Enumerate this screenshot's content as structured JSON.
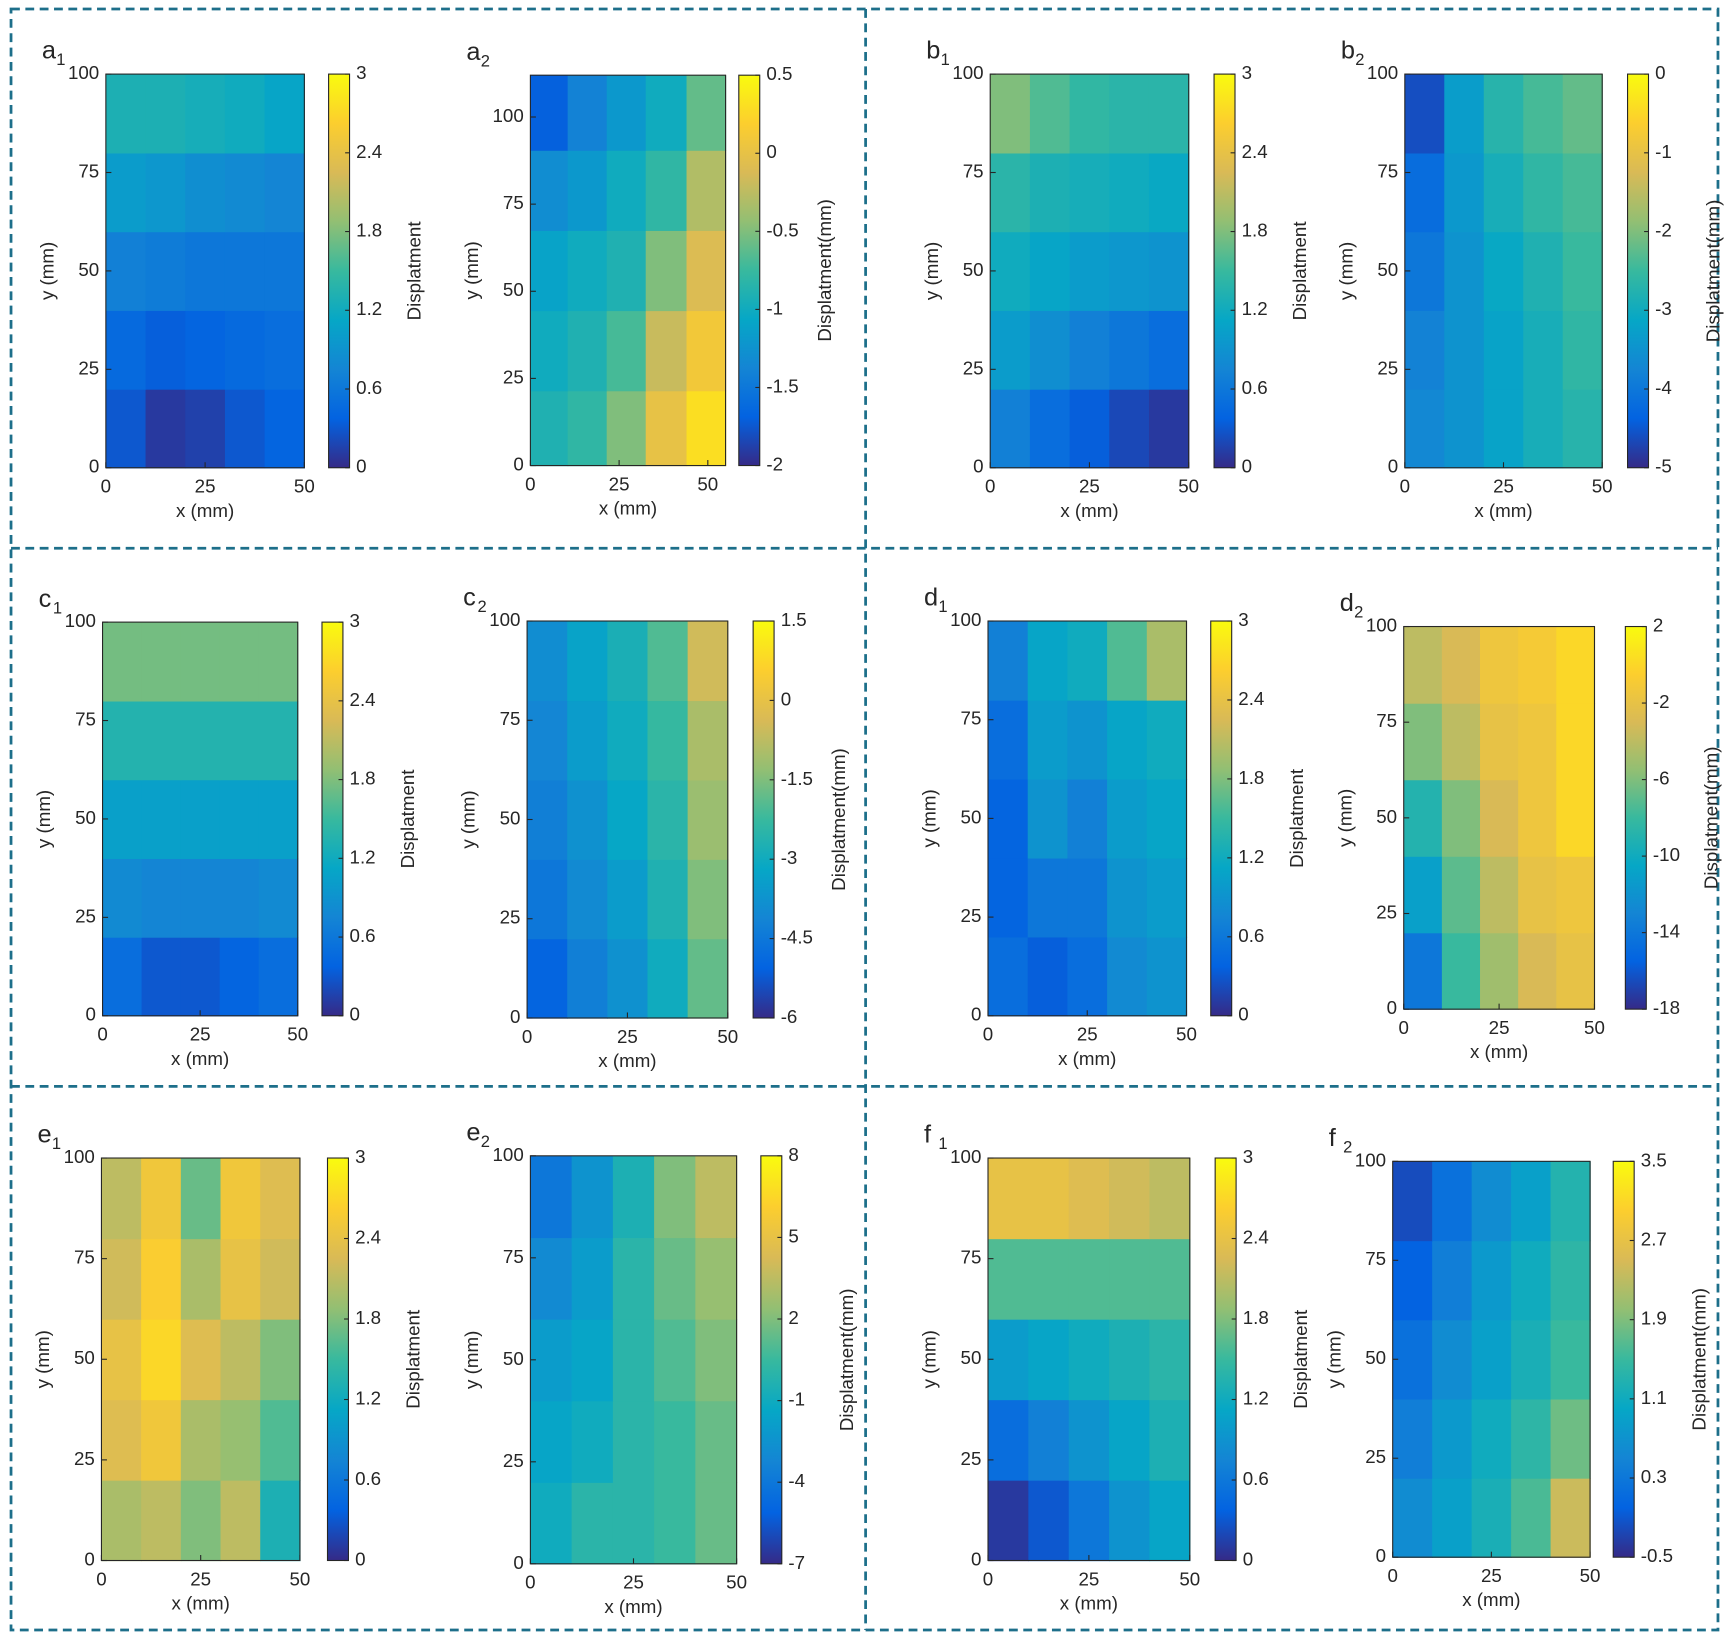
{
  "chart_data": [
    {
      "type": "contour",
      "label": "a",
      "sub": "1",
      "xlabel": "x (mm)",
      "ylabel": "y (mm)",
      "cbar_label": "Displatment",
      "x": [
        5,
        15,
        25,
        35,
        45
      ],
      "y": [
        10,
        30,
        50,
        70,
        90
      ],
      "z": [
        [
          0.3,
          0.1,
          0.15,
          0.3,
          0.4
        ],
        [
          0.45,
          0.35,
          0.4,
          0.45,
          0.5
        ],
        [
          0.7,
          0.65,
          0.6,
          0.6,
          0.6
        ],
        [
          1.0,
          0.95,
          0.85,
          0.8,
          0.75
        ],
        [
          1.3,
          1.3,
          1.25,
          1.2,
          1.1
        ]
      ],
      "xlim": [
        0,
        50
      ],
      "ylim": [
        0,
        100
      ],
      "xticks": [
        0,
        25,
        50
      ],
      "yticks": [
        0,
        25,
        50,
        75,
        100
      ],
      "clim": [
        0,
        3
      ],
      "cticks": [
        0,
        0.6,
        1.2,
        1.8,
        2.4,
        3
      ]
    },
    {
      "type": "contour",
      "label": "a",
      "sub": "2",
      "xlabel": "x (mm)",
      "ylabel": "y (mm)",
      "cbar_label": "Displatment(mm)",
      "x": [
        5,
        16,
        27,
        38,
        50
      ],
      "y": [
        10,
        33,
        56,
        79,
        102
      ],
      "z": [
        [
          -0.9,
          -0.8,
          -0.5,
          0.0,
          0.3
        ],
        [
          -1.0,
          -0.9,
          -0.7,
          -0.2,
          0.1
        ],
        [
          -1.1,
          -1.0,
          -0.9,
          -0.5,
          -0.1
        ],
        [
          -1.3,
          -1.2,
          -1.0,
          -0.8,
          -0.3
        ],
        [
          -1.7,
          -1.4,
          -1.2,
          -1.0,
          -0.6
        ]
      ],
      "xlim": [
        0,
        55
      ],
      "ylim": [
        0,
        112
      ],
      "xticks": [
        0,
        25,
        50
      ],
      "yticks": [
        0,
        25,
        50,
        75,
        100
      ],
      "clim": [
        -2,
        0.5
      ],
      "cticks": [
        -2,
        -1.5,
        -1,
        -0.5,
        0,
        0.5
      ]
    },
    {
      "type": "contour",
      "label": "b",
      "sub": "1",
      "xlabel": "x (mm)",
      "ylabel": "y (mm)",
      "cbar_label": "Displatment",
      "x": [
        5,
        15,
        25,
        35,
        45
      ],
      "y": [
        10,
        30,
        50,
        70,
        90
      ],
      "z": [
        [
          0.7,
          0.5,
          0.35,
          0.2,
          0.1
        ],
        [
          1.0,
          0.85,
          0.7,
          0.6,
          0.5
        ],
        [
          1.2,
          1.1,
          1.0,
          0.95,
          0.9
        ],
        [
          1.4,
          1.3,
          1.25,
          1.2,
          1.15
        ],
        [
          1.8,
          1.6,
          1.45,
          1.4,
          1.4
        ]
      ],
      "xlim": [
        0,
        50
      ],
      "ylim": [
        0,
        100
      ],
      "xticks": [
        0,
        25,
        50
      ],
      "yticks": [
        0,
        25,
        50,
        75,
        100
      ],
      "clim": [
        0,
        3
      ],
      "cticks": [
        0,
        0.6,
        1.2,
        1.8,
        2.4,
        3
      ]
    },
    {
      "type": "contour",
      "label": "b",
      "sub": "2",
      "xlabel": "x (mm)",
      "ylabel": "y (mm)",
      "cbar_label": "Displatment(mm)",
      "x": [
        5,
        15,
        25,
        35,
        45
      ],
      "y": [
        10,
        30,
        50,
        70,
        90
      ],
      "z": [
        [
          -3.7,
          -3.5,
          -3.2,
          -2.9,
          -2.7
        ],
        [
          -3.8,
          -3.5,
          -3.2,
          -2.9,
          -2.6
        ],
        [
          -4.0,
          -3.5,
          -3.1,
          -2.8,
          -2.5
        ],
        [
          -4.2,
          -3.4,
          -2.9,
          -2.6,
          -2.4
        ],
        [
          -4.6,
          -3.3,
          -2.7,
          -2.4,
          -2.2
        ]
      ],
      "xlim": [
        0,
        50
      ],
      "ylim": [
        0,
        100
      ],
      "xticks": [
        0,
        25,
        50
      ],
      "yticks": [
        0,
        25,
        50,
        75,
        100
      ],
      "clim": [
        -5,
        0
      ],
      "cticks": [
        -5,
        -4,
        -3,
        -2,
        -1,
        0
      ]
    },
    {
      "type": "contour",
      "label": "c",
      "sub": "1",
      "xlabel": "x (mm)",
      "ylabel": "y (mm)",
      "cbar_label": "Displatment",
      "x": [
        5,
        15,
        25,
        35,
        45
      ],
      "y": [
        10,
        30,
        50,
        70,
        90
      ],
      "z": [
        [
          0.5,
          0.3,
          0.3,
          0.4,
          0.5
        ],
        [
          0.8,
          0.75,
          0.75,
          0.75,
          0.8
        ],
        [
          1.05,
          1.05,
          1.05,
          1.05,
          1.05
        ],
        [
          1.35,
          1.35,
          1.35,
          1.35,
          1.35
        ],
        [
          1.75,
          1.75,
          1.75,
          1.75,
          1.75
        ]
      ],
      "xlim": [
        0,
        50
      ],
      "ylim": [
        0,
        100
      ],
      "xticks": [
        0,
        25,
        50
      ],
      "yticks": [
        0,
        25,
        50,
        75,
        100
      ],
      "clim": [
        0,
        3
      ],
      "cticks": [
        0,
        0.6,
        1.2,
        1.8,
        2.4,
        3
      ]
    },
    {
      "type": "contour",
      "label": "c",
      "sub": "2",
      "xlabel": "x (mm)",
      "ylabel": "y (mm)",
      "cbar_label": "Displatment(mm)",
      "x": [
        5,
        15,
        25,
        35,
        45
      ],
      "y": [
        10,
        30,
        50,
        70,
        90
      ],
      "z": [
        [
          -5.0,
          -4.3,
          -3.8,
          -3.0,
          -1.8
        ],
        [
          -4.5,
          -4.0,
          -3.5,
          -2.7,
          -1.5
        ],
        [
          -4.3,
          -3.8,
          -3.2,
          -2.5,
          -1.2
        ],
        [
          -4.1,
          -3.5,
          -3.0,
          -2.3,
          -1.0
        ],
        [
          -3.9,
          -3.3,
          -2.8,
          -2.0,
          -0.5
        ]
      ],
      "xlim": [
        0,
        50
      ],
      "ylim": [
        0,
        100
      ],
      "xticks": [
        0,
        25,
        50
      ],
      "yticks": [
        0,
        25,
        50,
        75,
        100
      ],
      "clim": [
        -6,
        1.5
      ],
      "cticks": [
        -6,
        -4.5,
        -3,
        -1.5,
        0,
        1.5
      ]
    },
    {
      "type": "contour",
      "label": "d",
      "sub": "1",
      "xlabel": "x (mm)",
      "ylabel": "y (mm)",
      "cbar_label": "Displatment",
      "x": [
        5,
        15,
        25,
        35,
        45
      ],
      "y": [
        10,
        30,
        50,
        70,
        90
      ],
      "z": [
        [
          0.5,
          0.35,
          0.5,
          0.8,
          0.9
        ],
        [
          0.4,
          0.6,
          0.6,
          0.9,
          1.0
        ],
        [
          0.4,
          0.9,
          0.7,
          1.0,
          1.1
        ],
        [
          0.5,
          1.0,
          0.9,
          1.1,
          1.2
        ],
        [
          0.7,
          1.1,
          1.2,
          1.6,
          2.0
        ]
      ],
      "xlim": [
        0,
        50
      ],
      "ylim": [
        0,
        100
      ],
      "xticks": [
        0,
        25,
        50
      ],
      "yticks": [
        0,
        25,
        50,
        75,
        100
      ],
      "clim": [
        0,
        3
      ],
      "cticks": [
        0,
        0.6,
        1.2,
        1.8,
        2.4,
        3
      ]
    },
    {
      "type": "contour",
      "label": "d",
      "sub": "2",
      "xlabel": "x (mm)",
      "ylabel": "y (mm)",
      "cbar_label": "Displatment(mm)",
      "x": [
        5,
        15,
        25,
        35,
        45
      ],
      "y": [
        10,
        30,
        50,
        70,
        90
      ],
      "z": [
        [
          -14,
          -8,
          -5,
          -3,
          -2
        ],
        [
          -11,
          -7,
          -4,
          -2,
          -1.5
        ],
        [
          -9,
          -6,
          -3,
          -1.5,
          0
        ],
        [
          -6,
          -4,
          -2,
          -1.5,
          0
        ],
        [
          -4,
          -3,
          -1.5,
          -1,
          0
        ]
      ],
      "xlim": [
        0,
        50
      ],
      "ylim": [
        0,
        100
      ],
      "xticks": [
        0,
        25,
        50
      ],
      "yticks": [
        0,
        25,
        50,
        75,
        100
      ],
      "clim": [
        -18,
        2
      ],
      "cticks": [
        -18,
        -14,
        -10,
        -6,
        -2,
        2
      ]
    },
    {
      "type": "contour",
      "label": "e",
      "sub": "1",
      "xlabel": "x (mm)",
      "ylabel": "y (mm)",
      "cbar_label": "Displatment",
      "x": [
        5,
        15,
        25,
        35,
        45
      ],
      "y": [
        10,
        30,
        50,
        70,
        90
      ],
      "z": [
        [
          2.0,
          2.1,
          1.8,
          2.1,
          1.3
        ],
        [
          2.3,
          2.5,
          2.0,
          1.9,
          1.6
        ],
        [
          2.4,
          2.7,
          2.3,
          2.1,
          1.8
        ],
        [
          2.2,
          2.6,
          2.0,
          2.4,
          2.2
        ],
        [
          2.1,
          2.5,
          1.7,
          2.5,
          2.3
        ]
      ],
      "xlim": [
        0,
        50
      ],
      "ylim": [
        0,
        100
      ],
      "xticks": [
        0,
        25,
        50
      ],
      "yticks": [
        0,
        25,
        50,
        75,
        100
      ],
      "clim": [
        0,
        3
      ],
      "cticks": [
        0,
        0.6,
        1.2,
        1.8,
        2.4,
        3
      ]
    },
    {
      "type": "contour",
      "label": "e",
      "sub": "2",
      "xlabel": "x (mm)",
      "ylabel": "y (mm)",
      "cbar_label": "Displatment(mm)",
      "x": [
        5,
        15,
        25,
        35,
        45
      ],
      "y": [
        10,
        30,
        50,
        70,
        90
      ],
      "z": [
        [
          -1,
          0,
          0,
          0.5,
          1.5
        ],
        [
          -1.5,
          -1,
          0,
          0.5,
          1.5
        ],
        [
          -2,
          -1.5,
          0,
          1,
          2
        ],
        [
          -3,
          -2,
          0,
          1.5,
          2.5
        ],
        [
          -4,
          -2.5,
          -0.5,
          2,
          3.5
        ]
      ],
      "xlim": [
        0,
        50
      ],
      "ylim": [
        0,
        100
      ],
      "xticks": [
        0,
        25,
        50
      ],
      "yticks": [
        0,
        25,
        50,
        75,
        100
      ],
      "clim": [
        -7,
        8
      ],
      "cticks": [
        -7,
        -4,
        -1,
        2,
        5,
        8
      ]
    },
    {
      "type": "contour",
      "label": "f",
      "sub": "1",
      "xlabel": "x (mm)",
      "ylabel": "y (mm)",
      "cbar_label": "Displatment",
      "x": [
        5,
        15,
        25,
        35,
        45
      ],
      "y": [
        10,
        30,
        50,
        70,
        90
      ],
      "z": [
        [
          0.1,
          0.3,
          0.6,
          0.9,
          1.1
        ],
        [
          0.5,
          0.7,
          0.9,
          1.1,
          1.3
        ],
        [
          1.0,
          1.1,
          1.2,
          1.3,
          1.4
        ],
        [
          1.6,
          1.6,
          1.6,
          1.6,
          1.6
        ],
        [
          2.4,
          2.4,
          2.3,
          2.2,
          2.1
        ]
      ],
      "xlim": [
        0,
        50
      ],
      "ylim": [
        0,
        100
      ],
      "xticks": [
        0,
        25,
        50
      ],
      "yticks": [
        0,
        25,
        50,
        75,
        100
      ],
      "clim": [
        0,
        3
      ],
      "cticks": [
        0,
        0.6,
        1.2,
        1.8,
        2.4,
        3
      ]
    },
    {
      "type": "contour",
      "label": "f",
      "sub": "2",
      "xlabel": "x (mm)",
      "ylabel": "y (mm)",
      "cbar_label": "Displatment(mm)",
      "x": [
        5,
        15,
        25,
        35,
        45
      ],
      "y": [
        10,
        30,
        50,
        70,
        90
      ],
      "z": [
        [
          0.6,
          0.9,
          1.2,
          1.6,
          2.4
        ],
        [
          0.4,
          0.8,
          1.1,
          1.4,
          1.8
        ],
        [
          0.2,
          0.6,
          0.9,
          1.2,
          1.5
        ],
        [
          0.0,
          0.4,
          0.8,
          1.1,
          1.4
        ],
        [
          -0.2,
          0.2,
          0.6,
          0.9,
          1.3
        ]
      ],
      "xlim": [
        0,
        50
      ],
      "ylim": [
        0,
        100
      ],
      "xticks": [
        0,
        25,
        50
      ],
      "yticks": [
        0,
        25,
        50,
        75,
        100
      ],
      "clim": [
        -0.5,
        3.5
      ],
      "cticks": [
        -0.5,
        0.3,
        1.1,
        1.9,
        2.7,
        3.5
      ]
    }
  ],
  "colormap": [
    "#352a87",
    "#0363e1",
    "#1485d4",
    "#06a7c6",
    "#38b99e",
    "#92bf73",
    "#d9ba56",
    "#fcce2e",
    "#f9fb0e"
  ]
}
